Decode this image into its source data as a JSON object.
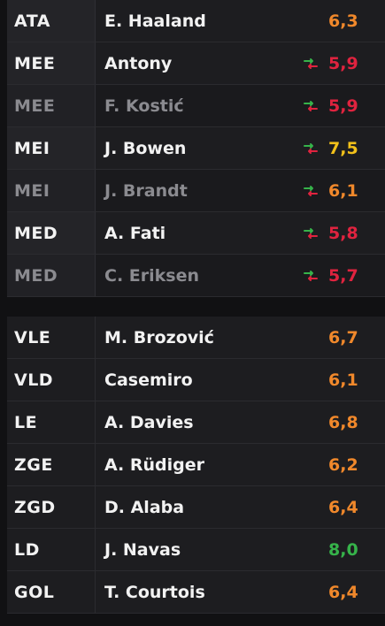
{
  "colors": {
    "orange": "#f0882b",
    "red": "#e0233f",
    "yellow": "#f2c11a",
    "green": "#36b34a"
  },
  "starters": [
    {
      "position": "ATA",
      "name": "E. Haaland",
      "rating": "6,3",
      "rating_color": "orange",
      "sub_icon": false,
      "dim": false
    },
    {
      "position": "MEE",
      "name": "Antony",
      "rating": "5,9",
      "rating_color": "red",
      "sub_icon": true,
      "dim": false
    },
    {
      "position": "MEE",
      "name": "F. Kostić",
      "rating": "5,9",
      "rating_color": "red",
      "sub_icon": true,
      "dim": true
    },
    {
      "position": "MEI",
      "name": "J. Bowen",
      "rating": "7,5",
      "rating_color": "yellow",
      "sub_icon": true,
      "dim": false
    },
    {
      "position": "MEI",
      "name": "J. Brandt",
      "rating": "6,1",
      "rating_color": "orange",
      "sub_icon": true,
      "dim": true
    },
    {
      "position": "MED",
      "name": "A. Fati",
      "rating": "5,8",
      "rating_color": "red",
      "sub_icon": true,
      "dim": false
    },
    {
      "position": "MED",
      "name": "C. Eriksen",
      "rating": "5,7",
      "rating_color": "red",
      "sub_icon": true,
      "dim": true
    }
  ],
  "defenders": [
    {
      "position": "VLE",
      "name": "M. Brozović",
      "rating": "6,7",
      "rating_color": "orange",
      "sub_icon": false,
      "dim": false
    },
    {
      "position": "VLD",
      "name": "Casemiro",
      "rating": "6,1",
      "rating_color": "orange",
      "sub_icon": false,
      "dim": false
    },
    {
      "position": "LE",
      "name": "A. Davies",
      "rating": "6,8",
      "rating_color": "orange",
      "sub_icon": false,
      "dim": false
    },
    {
      "position": "ZGE",
      "name": "A. Rüdiger",
      "rating": "6,2",
      "rating_color": "orange",
      "sub_icon": false,
      "dim": false
    },
    {
      "position": "ZGD",
      "name": "D. Alaba",
      "rating": "6,4",
      "rating_color": "orange",
      "sub_icon": false,
      "dim": false
    },
    {
      "position": "LD",
      "name": "J. Navas",
      "rating": "8,0",
      "rating_color": "green",
      "sub_icon": false,
      "dim": false
    },
    {
      "position": "GOL",
      "name": "T. Courtois",
      "rating": "6,4",
      "rating_color": "orange",
      "sub_icon": false,
      "dim": false
    }
  ]
}
